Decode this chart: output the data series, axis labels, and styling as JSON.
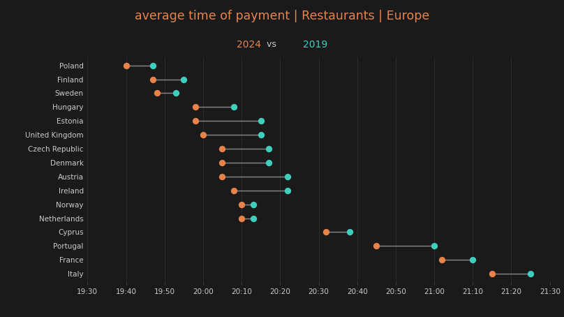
{
  "title_line1": "average time of payment | Restaurants | Europe",
  "title_color": "#e8834a",
  "year2024_color": "#e8834a",
  "year2019_color": "#3ecfbf",
  "background_color": "#1a1a1a",
  "line_color": "#888888",
  "text_color": "#cccccc",
  "countries": [
    "Poland",
    "Finland",
    "Sweden",
    "Hungary",
    "Estonia",
    "United Kingdom",
    "Czech Republic",
    "Denmark",
    "Austria",
    "Ireland",
    "Norway",
    "Netherlands",
    "Cyprus",
    "Portugal",
    "France",
    "Italy"
  ],
  "val_2024": [
    19.667,
    19.783,
    19.8,
    19.967,
    19.967,
    20.0,
    20.083,
    20.083,
    20.083,
    20.133,
    20.167,
    20.167,
    20.533,
    20.75,
    21.033,
    21.25
  ],
  "val_2019": [
    19.783,
    19.917,
    19.883,
    20.133,
    20.25,
    20.25,
    20.283,
    20.283,
    20.367,
    20.367,
    20.217,
    20.217,
    20.633,
    21.0,
    21.167,
    21.417
  ],
  "xlim_min": 19.5,
  "xlim_max": 21.5,
  "xtick_values": [
    19.5,
    19.667,
    19.833,
    20.0,
    20.167,
    20.333,
    20.5,
    20.667,
    20.833,
    21.0,
    21.167,
    21.333,
    21.5
  ],
  "xtick_labels": [
    "19:30",
    "19:40",
    "19:50",
    "20:00",
    "20:10",
    "20:20",
    "20:30",
    "20:40",
    "20:50",
    "21:00",
    "21:10",
    "21:20",
    "21:30"
  ]
}
